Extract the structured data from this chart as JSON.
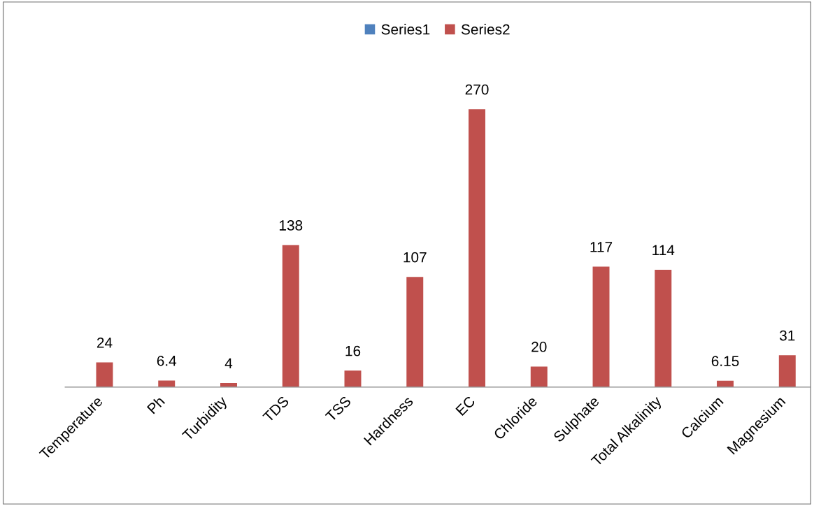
{
  "chart_data": {
    "type": "bar",
    "categories": [
      "Temperature",
      "Ph",
      "Turbidity",
      "TDS",
      "TSS",
      "Hardness",
      "EC",
      "Chloride",
      "Sulphate",
      "Total Alkalinity",
      "Calcium",
      "Magnesium"
    ],
    "series": [
      {
        "name": "Series1",
        "color": "#4f81bd",
        "values": [
          null,
          null,
          null,
          null,
          null,
          null,
          null,
          null,
          null,
          null,
          null,
          null
        ]
      },
      {
        "name": "Series2",
        "color": "#c0504d",
        "values": [
          24,
          6.4,
          4,
          138,
          16,
          107,
          270,
          20,
          117,
          114,
          6.15,
          31
        ]
      }
    ],
    "data_labels": true,
    "legend": "top",
    "grid": false
  }
}
